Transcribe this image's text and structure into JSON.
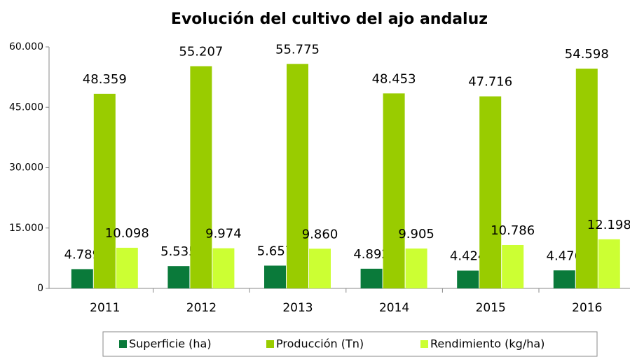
{
  "chart_data": {
    "type": "bar",
    "title": "Evolución del cultivo del ajo andaluz",
    "categories": [
      "2011",
      "2012",
      "2013",
      "2014",
      "2015",
      "2016"
    ],
    "series": [
      {
        "name": "Superficie (ha)",
        "color": "#0a7a3a",
        "values": [
          4789,
          5535,
          5657,
          4892,
          4424,
          4476
        ],
        "value_labels": [
          "4.789",
          "5.535",
          "5.657",
          "4.892",
          "4.424",
          "4.476"
        ]
      },
      {
        "name": "Producción (Tn)",
        "color": "#99cc00",
        "values": [
          48359,
          55207,
          55775,
          48453,
          47716,
          54598
        ],
        "value_labels": [
          "48.359",
          "55.207",
          "55.775",
          "48.453",
          "47.716",
          "54.598"
        ]
      },
      {
        "name": "Rendimiento (kg/ha)",
        "color": "#ccff33",
        "values": [
          10098,
          9974,
          9860,
          9905,
          10786,
          12198
        ],
        "value_labels": [
          "10.098",
          "9.974",
          "9.860",
          "9.905",
          "10.786",
          "12.198"
        ]
      }
    ],
    "ylim": [
      0,
      60000
    ],
    "yticks": [
      {
        "value": 0,
        "label": "0"
      },
      {
        "value": 15000,
        "label": "15.000"
      },
      {
        "value": 30000,
        "label": "30.000"
      },
      {
        "value": 45000,
        "label": "45.000"
      },
      {
        "value": 60000,
        "label": "60.000"
      }
    ],
    "grid": false
  }
}
